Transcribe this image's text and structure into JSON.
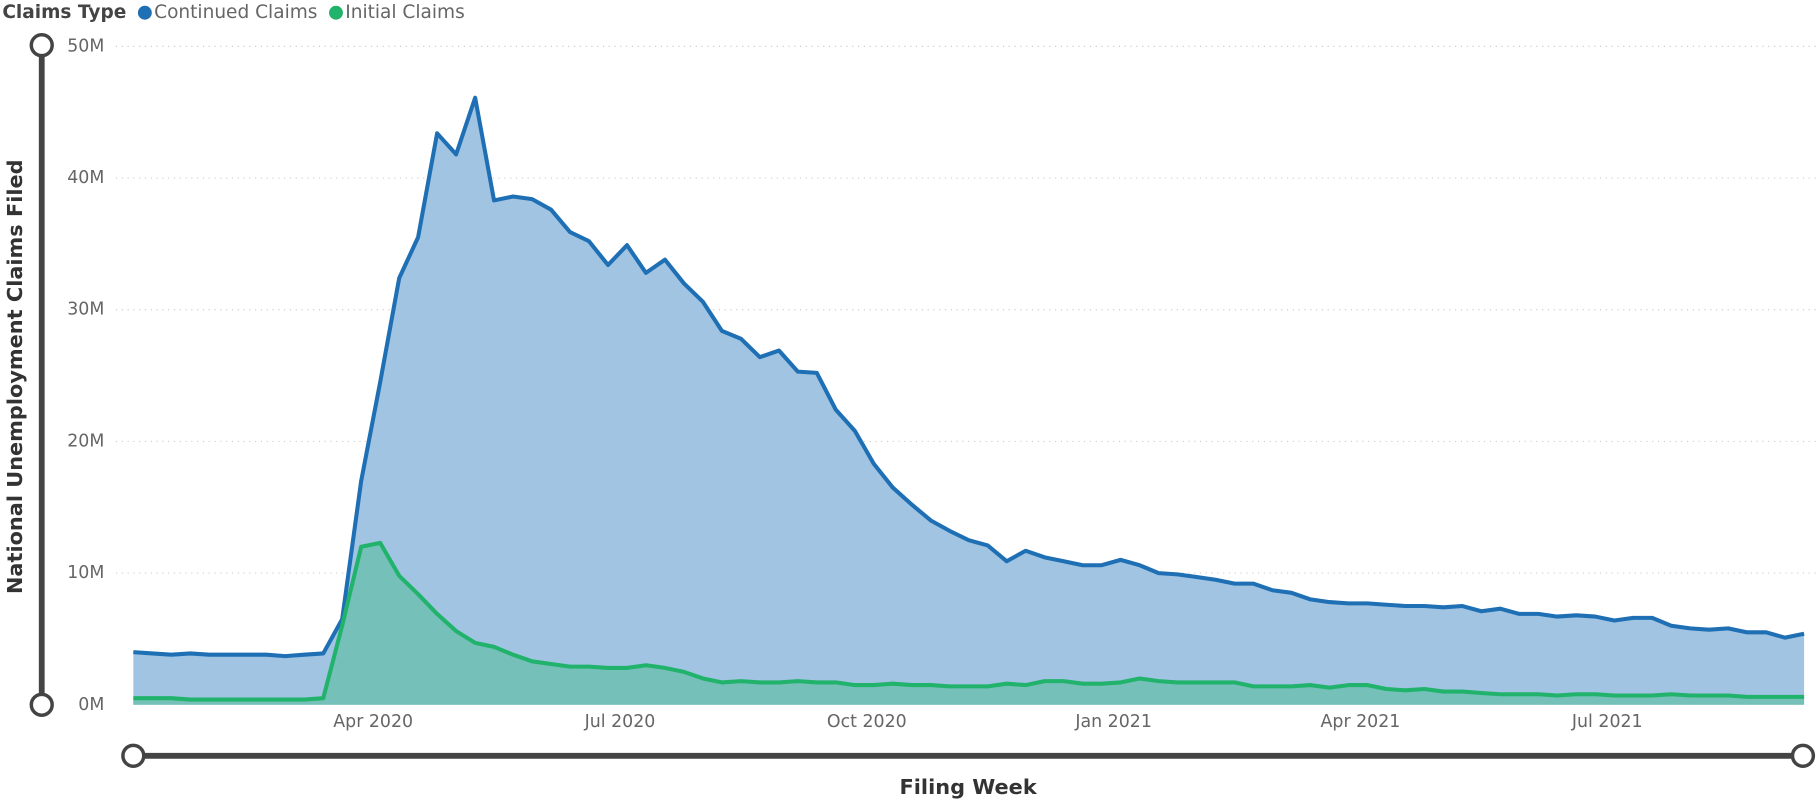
{
  "chart_data": {
    "type": "area",
    "legend_title": "Claims Type",
    "y_label": "National Unemployment Claims Filed",
    "x_label": "Filing Week",
    "legend": "top-left",
    "grid": true,
    "ylim": [
      0,
      50000000
    ],
    "yticks": [
      {
        "value": 0,
        "label": "0M"
      },
      {
        "value": 10000000,
        "label": "10M"
      },
      {
        "value": 20000000,
        "label": "20M"
      },
      {
        "value": 30000000,
        "label": "30M"
      },
      {
        "value": 40000000,
        "label": "40M"
      },
      {
        "value": 50000000,
        "label": "50M"
      }
    ],
    "categories": [
      null,
      null,
      null,
      null,
      null,
      null,
      null,
      null,
      null,
      null,
      null,
      null,
      null,
      "Apr 2020",
      null,
      null,
      null,
      null,
      null,
      null,
      null,
      null,
      null,
      null,
      null,
      null,
      "Jul 2020",
      null,
      null,
      null,
      null,
      null,
      null,
      null,
      null,
      null,
      null,
      null,
      null,
      "Oct 2020",
      null,
      null,
      null,
      null,
      null,
      null,
      null,
      null,
      null,
      null,
      null,
      null,
      "Jan 2021",
      null,
      null,
      null,
      null,
      null,
      null,
      null,
      null,
      null,
      null,
      null,
      null,
      "Apr 2021",
      null,
      null,
      null,
      null,
      null,
      null,
      null,
      null,
      null,
      null,
      null,
      null,
      "Jul 2021",
      null,
      null,
      null,
      null,
      null,
      null,
      null,
      null,
      null,
      null
    ],
    "series": [
      {
        "name": "Continued Claims",
        "color": "#1f6fb4",
        "fill": "#a0c4e2",
        "values": [
          4000000.0,
          3900000.0,
          3800000.0,
          3900000.0,
          3800000.0,
          3800000.0,
          3800000.0,
          3800000.0,
          3700000.0,
          3800000.0,
          3900000.0,
          6500000.0,
          17000000.0,
          24500000.0,
          32400000.0,
          35500000.0,
          43400000.0,
          41800000.0,
          46100000.0,
          38300000.0,
          38600000.0,
          38400000.0,
          37600000.0,
          35900000.0,
          35200000.0,
          33400000.0,
          34900000.0,
          32800000.0,
          33800000.0,
          32000000.0,
          30600000.0,
          28400000.0,
          27800000.0,
          26400000.0,
          26900000.0,
          25300000.0,
          25200000.0,
          22400000.0,
          20800000.0,
          18300000.0,
          16500000.0,
          15200000.0,
          14000000.0,
          13200000.0,
          12500000.0,
          12100000.0,
          10900000.0,
          11700000.0,
          11200000.0,
          10900000.0,
          10600000.0,
          10600000.0,
          11000000.0,
          10600000.0,
          10000000.0,
          9900000.0,
          9700000.0,
          9500000.0,
          9200000.0,
          9200000.0,
          8700000.0,
          8500000.0,
          8000000.0,
          7800000.0,
          7700000.0,
          7700000.0,
          7600000.0,
          7500000.0,
          7500000.0,
          7400000.0,
          7500000.0,
          7100000.0,
          7300000.0,
          6900000.0,
          6900000.0,
          6700000.0,
          6800000.0,
          6700000.0,
          6400000.0,
          6600000.0,
          6600000.0,
          6000000.0,
          5800000.0,
          5700000.0,
          5800000.0,
          5500000.0,
          5500000.0,
          5100000.0,
          5400000.0
        ]
      },
      {
        "name": "Initial Claims",
        "color": "#21b36b",
        "fill": "#6dbfb2",
        "values": [
          500000.0,
          500000.0,
          500000.0,
          400000.0,
          400000.0,
          400000.0,
          400000.0,
          400000.0,
          400000.0,
          400000.0,
          500000.0,
          6000000.0,
          12000000.0,
          12300000.0,
          9800000.0,
          8400000.0,
          6900000.0,
          5600000.0,
          4700000.0,
          4400000.0,
          3800000.0,
          3300000.0,
          3100000.0,
          2900000.0,
          2900000.0,
          2800000.0,
          2800000.0,
          3000000.0,
          2800000.0,
          2500000.0,
          2000000.0,
          1700000.0,
          1800000.0,
          1700000.0,
          1700000.0,
          1800000.0,
          1700000.0,
          1700000.0,
          1500000.0,
          1500000.0,
          1600000.0,
          1500000.0,
          1500000.0,
          1400000.0,
          1400000.0,
          1400000.0,
          1600000.0,
          1500000.0,
          1800000.0,
          1800000.0,
          1600000.0,
          1600000.0,
          1700000.0,
          2000000.0,
          1800000.0,
          1700000.0,
          1700000.0,
          1700000.0,
          1700000.0,
          1400000.0,
          1400000.0,
          1400000.0,
          1500000.0,
          1300000.0,
          1500000.0,
          1500000.0,
          1200000.0,
          1100000.0,
          1200000.0,
          1000000.0,
          1000000.0,
          900000.0,
          800000.0,
          800000.0,
          800000.0,
          700000.0,
          800000.0,
          800000.0,
          700000.0,
          700000.0,
          700000.0,
          800000.0,
          700000.0,
          700000.0,
          700000.0,
          600000.0,
          600000.0,
          600000.0,
          600000.0
        ]
      }
    ]
  }
}
